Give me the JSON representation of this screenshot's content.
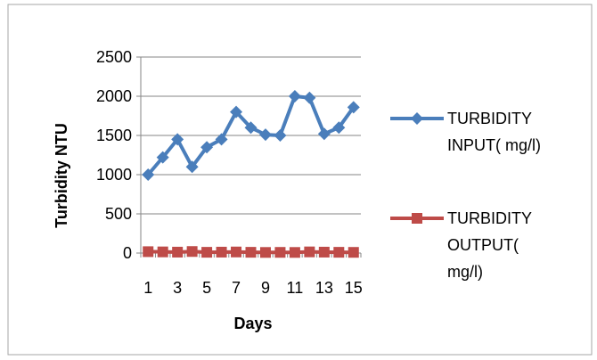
{
  "chart_data": {
    "type": "line",
    "xlabel": "Days",
    "ylabel": "Turbidity NTU",
    "ylim": [
      0,
      2500
    ],
    "y_ticks": [
      "0",
      "500",
      "1000",
      "1500",
      "2000",
      "2500"
    ],
    "x": [
      1,
      2,
      3,
      4,
      5,
      6,
      7,
      8,
      9,
      10,
      11,
      12,
      13,
      14,
      15
    ],
    "x_tick_labels": [
      "1",
      "3",
      "5",
      "7",
      "9",
      "11",
      "13",
      "15"
    ],
    "grid": "horizontal",
    "legend_position": "right",
    "series": [
      {
        "name_lines": [
          "TURBIDITY",
          "INPUT( mg/l)"
        ],
        "color": "#4a7ebb",
        "marker": "diamond",
        "values": [
          1000,
          1220,
          1450,
          1100,
          1350,
          1450,
          1800,
          1600,
          1510,
          1500,
          2000,
          1980,
          1520,
          1600,
          1860
        ]
      },
      {
        "name_lines": [
          "TURBIDITY",
          "OUTPUT(",
          "mg/l)"
        ],
        "color": "#be4b48",
        "marker": "square",
        "values": [
          18,
          15,
          12,
          20,
          10,
          12,
          14,
          10,
          8,
          9,
          8,
          15,
          12,
          10,
          9
        ]
      }
    ]
  }
}
